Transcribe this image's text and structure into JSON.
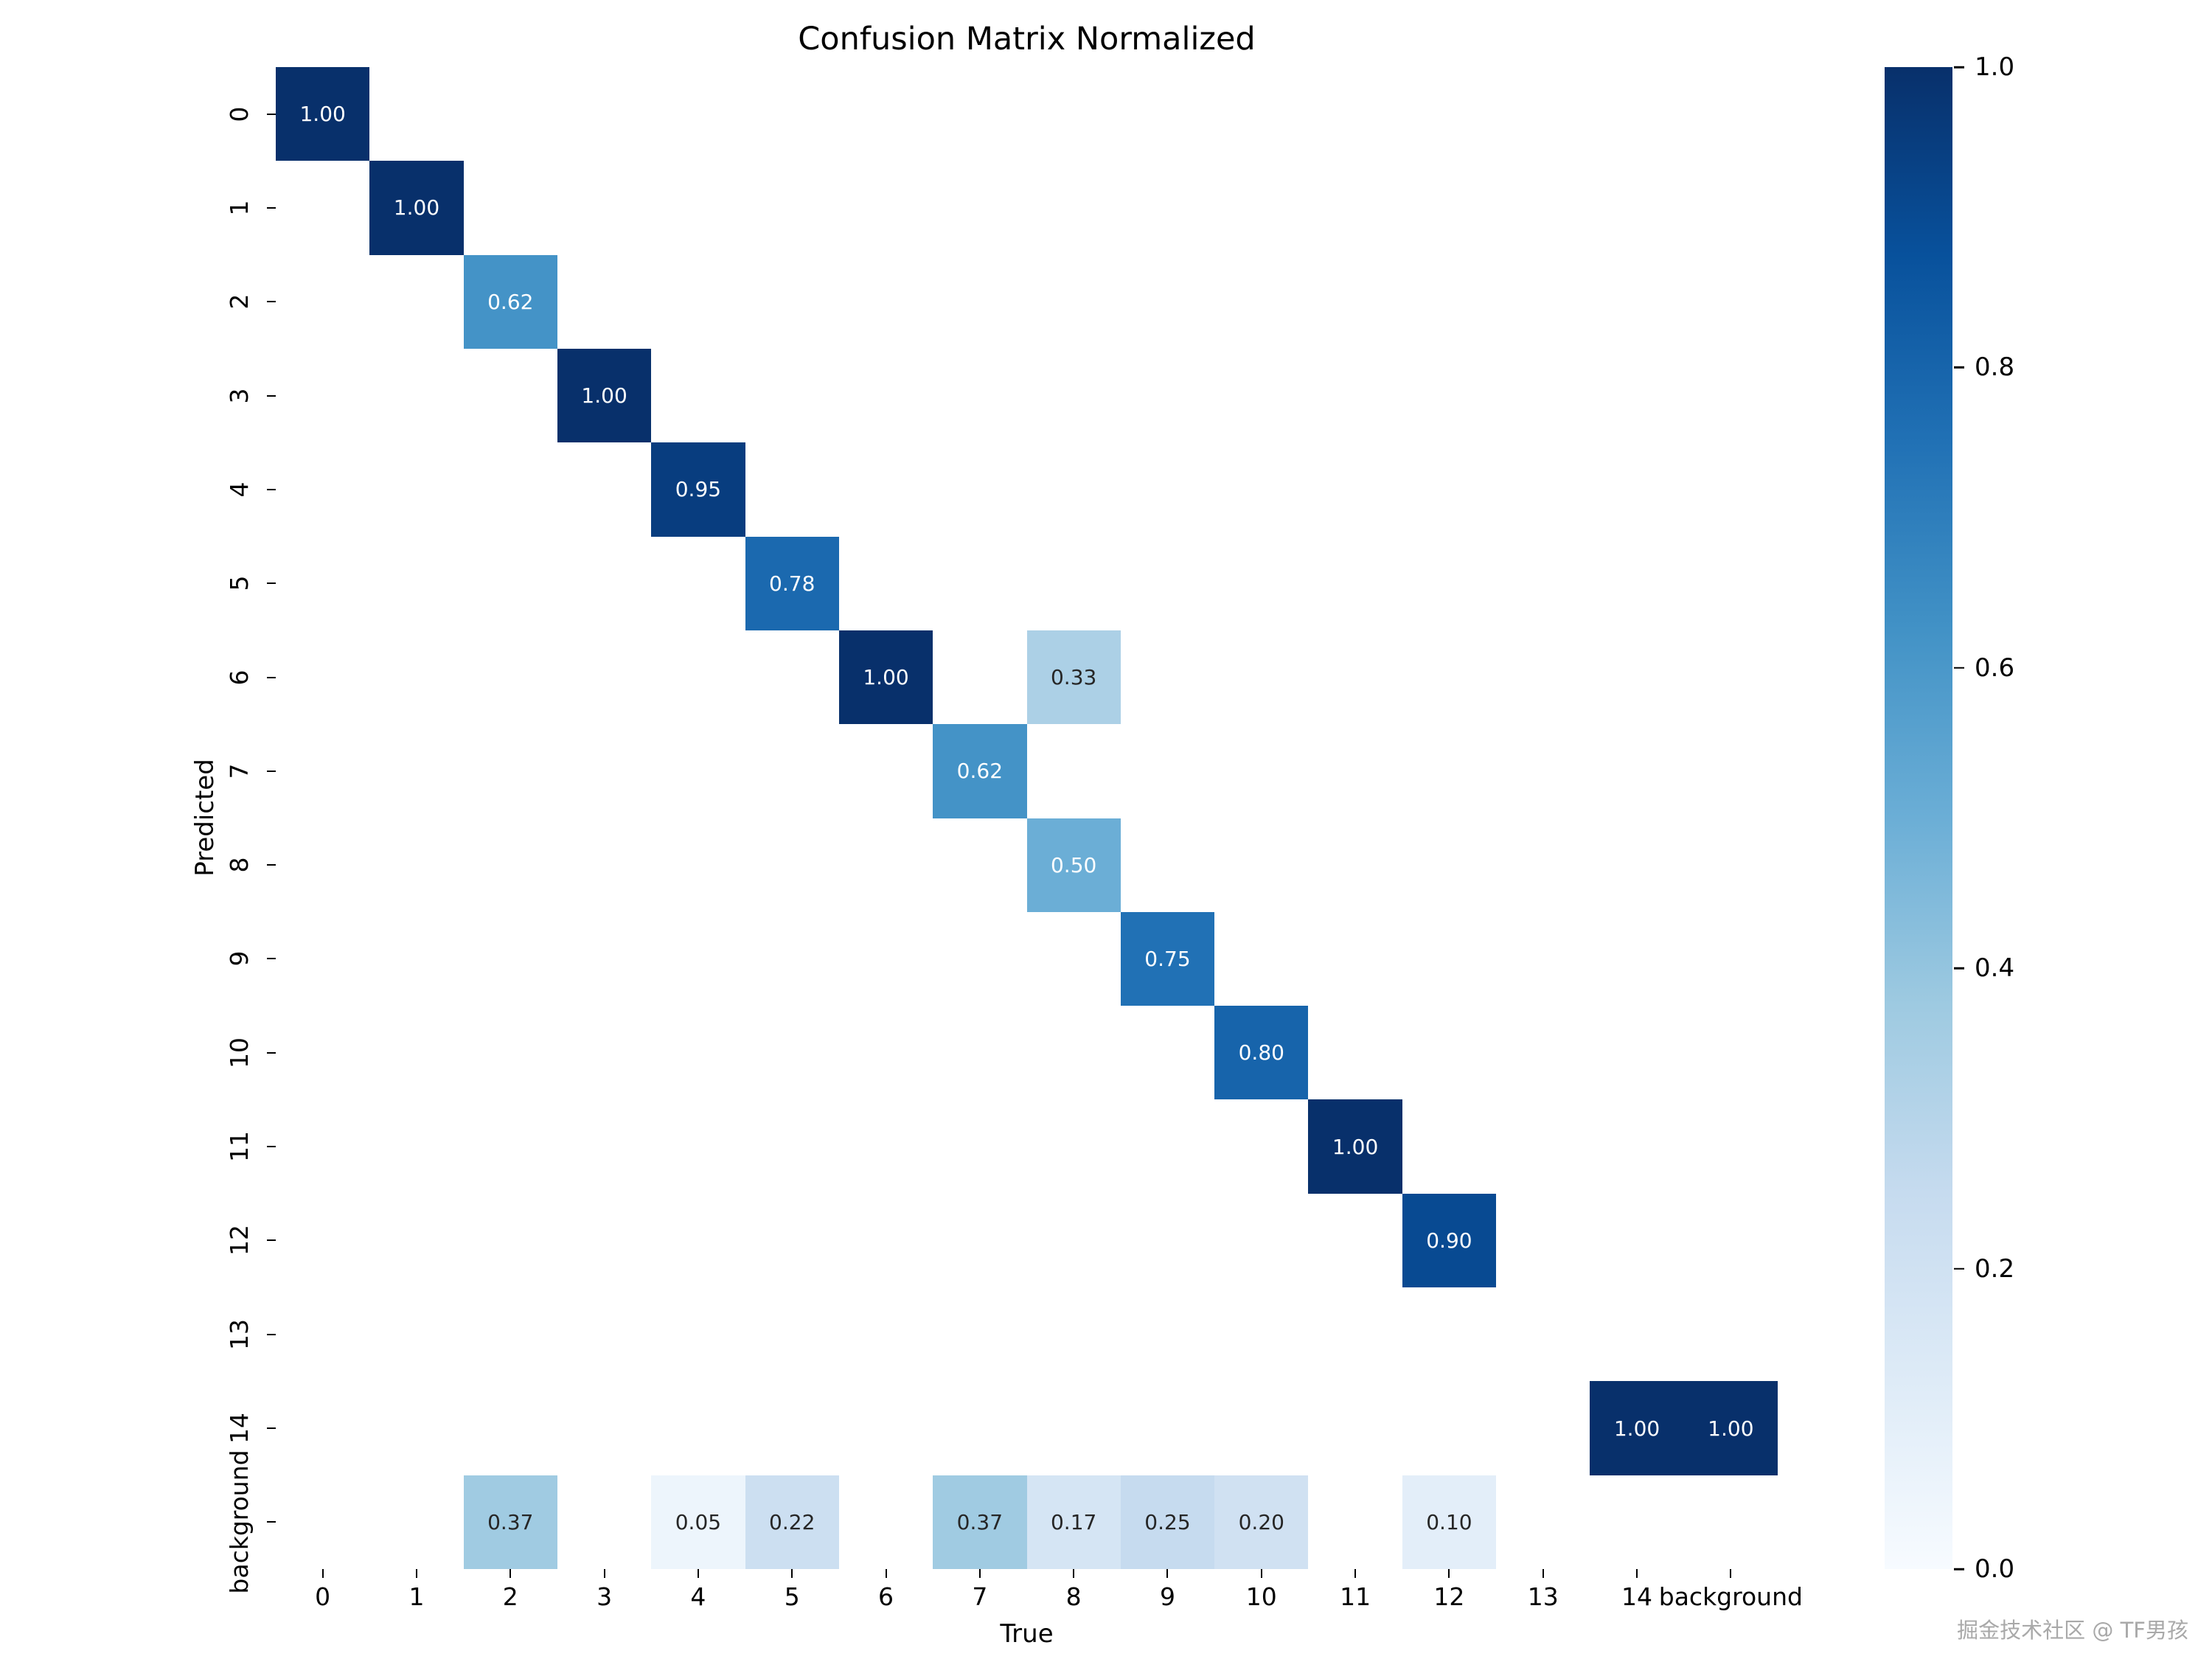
{
  "watermark": "掘金技术社区 @ TF男孩",
  "chart_data": {
    "type": "heatmap",
    "title": "Confusion Matrix Normalized",
    "xlabel": "True",
    "ylabel": "Predicted",
    "colormap": "Blues",
    "value_range": [
      0.0,
      1.0
    ],
    "grid": false,
    "legend": "colorbar-right",
    "x_categories": [
      "0",
      "1",
      "2",
      "3",
      "4",
      "5",
      "6",
      "7",
      "8",
      "9",
      "10",
      "11",
      "12",
      "13",
      "14",
      "background"
    ],
    "y_categories": [
      "0",
      "1",
      "2",
      "3",
      "4",
      "5",
      "6",
      "7",
      "8",
      "9",
      "10",
      "11",
      "12",
      "13",
      "14",
      "background"
    ],
    "cells": [
      {
        "row": 0,
        "col": 0,
        "value": 1.0,
        "label": "1.00"
      },
      {
        "row": 1,
        "col": 1,
        "value": 1.0,
        "label": "1.00"
      },
      {
        "row": 2,
        "col": 2,
        "value": 0.62,
        "label": "0.62"
      },
      {
        "row": 3,
        "col": 3,
        "value": 1.0,
        "label": "1.00"
      },
      {
        "row": 4,
        "col": 4,
        "value": 0.95,
        "label": "0.95"
      },
      {
        "row": 5,
        "col": 5,
        "value": 0.78,
        "label": "0.78"
      },
      {
        "row": 6,
        "col": 6,
        "value": 1.0,
        "label": "1.00"
      },
      {
        "row": 6,
        "col": 8,
        "value": 0.33,
        "label": "0.33"
      },
      {
        "row": 7,
        "col": 7,
        "value": 0.62,
        "label": "0.62"
      },
      {
        "row": 8,
        "col": 8,
        "value": 0.5,
        "label": "0.50"
      },
      {
        "row": 9,
        "col": 9,
        "value": 0.75,
        "label": "0.75"
      },
      {
        "row": 10,
        "col": 10,
        "value": 0.8,
        "label": "0.80"
      },
      {
        "row": 11,
        "col": 11,
        "value": 1.0,
        "label": "1.00"
      },
      {
        "row": 12,
        "col": 12,
        "value": 0.9,
        "label": "0.90"
      },
      {
        "row": 14,
        "col": 14,
        "value": 1.0,
        "label": "1.00"
      },
      {
        "row": 14,
        "col": 15,
        "value": 1.0,
        "label": "1.00"
      },
      {
        "row": 15,
        "col": 2,
        "value": 0.37,
        "label": "0.37"
      },
      {
        "row": 15,
        "col": 4,
        "value": 0.05,
        "label": "0.05"
      },
      {
        "row": 15,
        "col": 5,
        "value": 0.22,
        "label": "0.22"
      },
      {
        "row": 15,
        "col": 7,
        "value": 0.37,
        "label": "0.37"
      },
      {
        "row": 15,
        "col": 8,
        "value": 0.17,
        "label": "0.17"
      },
      {
        "row": 15,
        "col": 9,
        "value": 0.25,
        "label": "0.25"
      },
      {
        "row": 15,
        "col": 10,
        "value": 0.2,
        "label": "0.20"
      },
      {
        "row": 15,
        "col": 12,
        "value": 0.1,
        "label": "0.10"
      }
    ],
    "colormap_stops": [
      [
        0.0,
        "#f7fbff"
      ],
      [
        0.125,
        "#deebf7"
      ],
      [
        0.25,
        "#c6dbef"
      ],
      [
        0.375,
        "#9ecae1"
      ],
      [
        0.5,
        "#6baed6"
      ],
      [
        0.625,
        "#4292c6"
      ],
      [
        0.75,
        "#2171b5"
      ],
      [
        0.875,
        "#08519c"
      ],
      [
        1.0,
        "#08306b"
      ]
    ],
    "colorbar_ticks": [
      {
        "value": 1.0,
        "label": "1.0"
      },
      {
        "value": 0.8,
        "label": "0.8"
      },
      {
        "value": 0.6,
        "label": "0.6"
      },
      {
        "value": 0.4,
        "label": "0.4"
      },
      {
        "value": 0.2,
        "label": "0.2"
      },
      {
        "value": 0.0,
        "label": "0.0"
      }
    ],
    "annotation_text_colors": {
      "light": "#ffffff",
      "dark": "#262626"
    }
  }
}
